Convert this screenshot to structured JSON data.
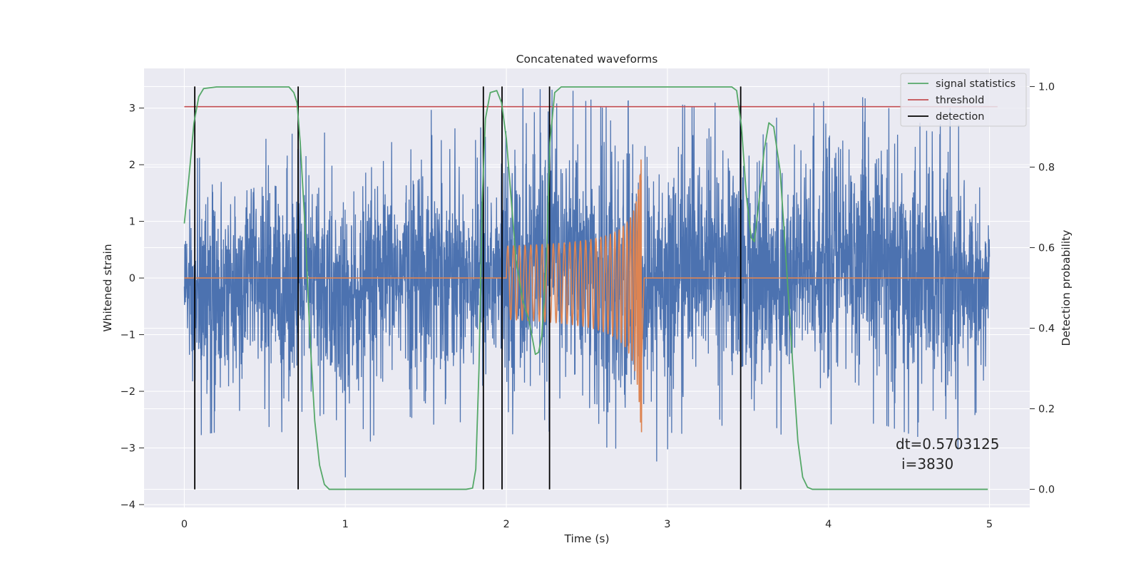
{
  "chart_data": {
    "type": "line",
    "title": "Concatenated waveforms",
    "xlabel": "Time (s)",
    "ylabel": "Whitened strain",
    "y2label": "Detection probability",
    "xlim": [
      -0.25,
      5.25
    ],
    "ylim": [
      -4.05,
      3.7
    ],
    "y2lim": [
      -0.045,
      1.045
    ],
    "x_ticks": [
      0,
      1,
      2,
      3,
      4,
      5
    ],
    "y_ticks": [
      -4,
      -3,
      -2,
      -1,
      0,
      1,
      2,
      3
    ],
    "y2_ticks": [
      0.0,
      0.2,
      0.4,
      0.6,
      0.8,
      1.0
    ],
    "x_tick_labels": [
      "0",
      "1",
      "2",
      "3",
      "4",
      "5"
    ],
    "y_tick_labels": [
      "−4",
      "−3",
      "−2",
      "−1",
      "0",
      "1",
      "2",
      "3"
    ],
    "y2_tick_labels": [
      "0.0",
      "0.2",
      "0.4",
      "0.6",
      "0.8",
      "1.0"
    ],
    "grid": true,
    "legend_position": "top-right",
    "colors": {
      "background": "#eaeaf2",
      "grid": "#ffffff",
      "strain": "#4c72b0",
      "injected": "#dd8452",
      "signal_statistics": "#55a868",
      "threshold": "#c44e52",
      "detection": "#000000"
    },
    "series": [
      {
        "name": "strain",
        "role": "whitened noisy strain",
        "x_range": [
          0,
          5
        ],
        "envelope": [
          {
            "x": 0.0,
            "y_min": -1.15,
            "y_max": 1.1
          },
          {
            "x": 0.05,
            "y_min": -2.8,
            "y_max": 2.1
          },
          {
            "x": 0.25,
            "y_min": -2.7,
            "y_max": 2.2
          },
          {
            "x": 0.5,
            "y_min": -2.6,
            "y_max": 2.5
          },
          {
            "x": 0.85,
            "y_min": -3.0,
            "y_max": 2.6
          },
          {
            "x": 0.98,
            "y_min": -3.6,
            "y_max": 2.4
          },
          {
            "x": 1.3,
            "y_min": -2.3,
            "y_max": 2.4
          },
          {
            "x": 1.5,
            "y_min": -2.6,
            "y_max": 3.0
          },
          {
            "x": 1.9,
            "y_min": -2.5,
            "y_max": 2.6
          },
          {
            "x": 2.1,
            "y_min": -2.9,
            "y_max": 3.35
          },
          {
            "x": 2.45,
            "y_min": -2.5,
            "y_max": 3.3
          },
          {
            "x": 2.6,
            "y_min": -3.7,
            "y_max": 3.0
          },
          {
            "x": 2.85,
            "y_min": -3.5,
            "y_max": 3.2
          },
          {
            "x": 3.2,
            "y_min": -2.4,
            "y_max": 3.0
          },
          {
            "x": 3.4,
            "y_min": -2.7,
            "y_max": 3.2
          },
          {
            "x": 3.7,
            "y_min": -2.9,
            "y_max": 2.8
          },
          {
            "x": 4.1,
            "y_min": -2.5,
            "y_max": 3.35
          },
          {
            "x": 4.35,
            "y_min": -2.6,
            "y_max": 3.0
          },
          {
            "x": 4.8,
            "y_min": -3.05,
            "y_max": 3.0
          },
          {
            "x": 5.0,
            "y_min": -1.9,
            "y_max": 1.55
          }
        ]
      },
      {
        "name": "injected waveform",
        "role": "chirp signal",
        "flat": [
          [
            0,
            0
          ],
          [
            2.0,
            0
          ],
          [
            2.855,
            0
          ],
          [
            3.0,
            0
          ]
        ],
        "chirp": {
          "t_start": 2.0,
          "t_merger": 2.84,
          "f_start": 25,
          "f_merger": 260,
          "amp_start": 0.45,
          "amp_peak": 2.35,
          "amp_min": -3.05
        }
      },
      {
        "name": "signal statistics",
        "points": [
          [
            0.0,
            0.66
          ],
          [
            0.03,
            0.78
          ],
          [
            0.06,
            0.91
          ],
          [
            0.09,
            0.975
          ],
          [
            0.12,
            0.995
          ],
          [
            0.2,
            0.999
          ],
          [
            0.65,
            0.999
          ],
          [
            0.68,
            0.985
          ],
          [
            0.7,
            0.96
          ],
          [
            0.72,
            0.86
          ],
          [
            0.75,
            0.65
          ],
          [
            0.78,
            0.38
          ],
          [
            0.81,
            0.17
          ],
          [
            0.84,
            0.06
          ],
          [
            0.87,
            0.012
          ],
          [
            0.9,
            0.0
          ],
          [
            1.75,
            0.0
          ],
          [
            1.79,
            0.003
          ],
          [
            1.81,
            0.05
          ],
          [
            1.83,
            0.3
          ],
          [
            1.85,
            0.72
          ],
          [
            1.87,
            0.92
          ],
          [
            1.9,
            0.985
          ],
          [
            1.94,
            0.99
          ],
          [
            1.97,
            0.96
          ],
          [
            2.0,
            0.87
          ],
          [
            2.03,
            0.72
          ],
          [
            2.06,
            0.57
          ],
          [
            2.1,
            0.47
          ],
          [
            2.14,
            0.42
          ],
          [
            2.18,
            0.335
          ],
          [
            2.2,
            0.34
          ],
          [
            2.22,
            0.38
          ],
          [
            2.25,
            0.58
          ],
          [
            2.27,
            0.86
          ],
          [
            2.3,
            0.985
          ],
          [
            2.34,
            0.999
          ],
          [
            3.4,
            0.999
          ],
          [
            3.43,
            0.99
          ],
          [
            3.46,
            0.9
          ],
          [
            3.49,
            0.73
          ],
          [
            3.52,
            0.625
          ],
          [
            3.54,
            0.615
          ],
          [
            3.57,
            0.72
          ],
          [
            3.6,
            0.84
          ],
          [
            3.63,
            0.91
          ],
          [
            3.66,
            0.9
          ],
          [
            3.7,
            0.79
          ],
          [
            3.74,
            0.55
          ],
          [
            3.78,
            0.3
          ],
          [
            3.81,
            0.12
          ],
          [
            3.84,
            0.03
          ],
          [
            3.87,
            0.005
          ],
          [
            3.9,
            0.0
          ],
          [
            4.99,
            0.0
          ]
        ]
      },
      {
        "name": "threshold",
        "points": [
          [
            0.0,
            0.95
          ],
          [
            5.05,
            0.95
          ]
        ]
      },
      {
        "name": "detection",
        "times": [
          0.065,
          0.707,
          1.857,
          1.973,
          2.268,
          3.455
        ],
        "y_range": [
          0.0,
          1.0
        ]
      }
    ],
    "legend": [
      {
        "label": "signal statistics",
        "color": "#55a868"
      },
      {
        "label": "threshold",
        "color": "#c44e52"
      },
      {
        "label": "detection",
        "color": "#000000"
      }
    ],
    "annotations": [
      "dt=0.5703125",
      "i=3830"
    ]
  }
}
